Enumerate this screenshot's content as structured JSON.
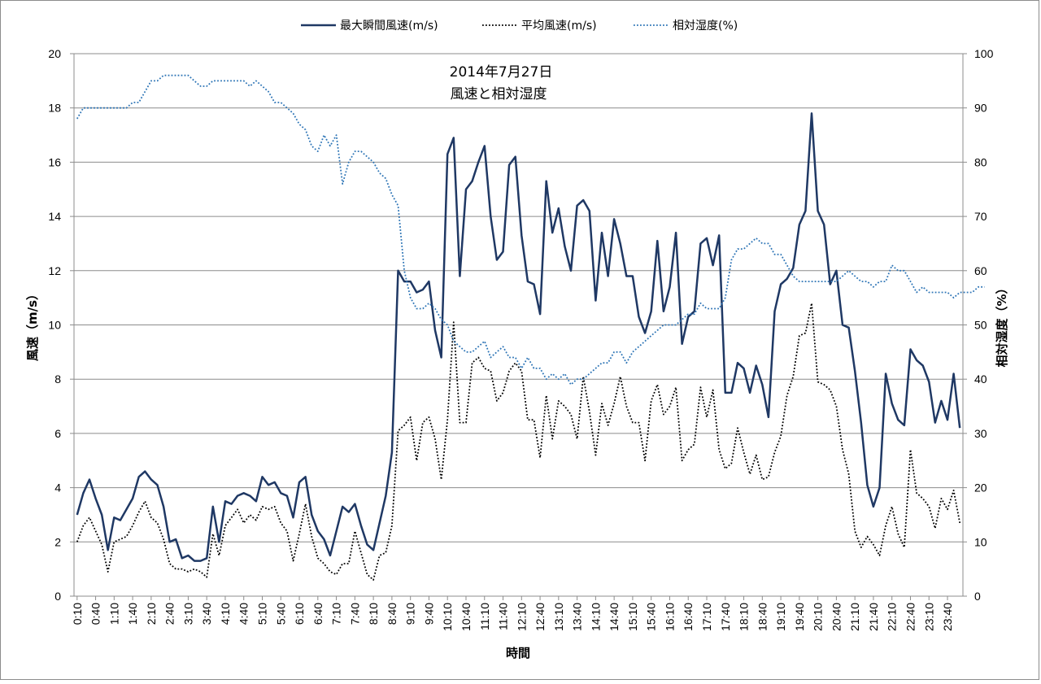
{
  "chart_data": {
    "type": "line",
    "title": "2014年7月27日",
    "subtitle": "風速と相対湿度",
    "xlabel": "時間",
    "ylabel_left": "風速（m/s）",
    "ylabel_right": "相対湿度（%）",
    "ylim_left": [
      0,
      20
    ],
    "ylim_right": [
      0,
      100
    ],
    "yticks_left": [
      "0",
      "2",
      "4",
      "6",
      "8",
      "10",
      "12",
      "14",
      "16",
      "18",
      "20"
    ],
    "yticks_right": [
      "0",
      "10",
      "20",
      "30",
      "40",
      "50",
      "60",
      "70",
      "80",
      "90",
      "100"
    ],
    "grid": true,
    "legend_position": "top",
    "x_tick_labels": [
      "0:10",
      "0:40",
      "1:10",
      "1:40",
      "2:10",
      "2:40",
      "3:10",
      "3:40",
      "4:10",
      "4:40",
      "5:10",
      "5:40",
      "6:10",
      "6:40",
      "7:10",
      "7:40",
      "8:10",
      "8:40",
      "9:10",
      "9:40",
      "10:10",
      "10:40",
      "11:10",
      "11:40",
      "12:10",
      "12:40",
      "13:10",
      "13:40",
      "14:10",
      "14:40",
      "15:10",
      "15:40",
      "16:10",
      "16:40",
      "17:10",
      "17:40",
      "18:10",
      "18:40",
      "19:10",
      "19:40",
      "20:10",
      "20:40",
      "21:10",
      "21:40",
      "22:10",
      "22:40",
      "23:10",
      "23:40"
    ],
    "x_start": "0:10",
    "x_interval_minutes": 10,
    "series": [
      {
        "name": "最大瞬間風速(m/s)",
        "axis": "left",
        "color": "#1f3864",
        "style": "solid",
        "values": [
          3.0,
          3.8,
          4.3,
          3.6,
          3.0,
          1.7,
          2.9,
          2.8,
          3.2,
          3.6,
          4.4,
          4.6,
          4.3,
          4.1,
          3.3,
          2.0,
          2.1,
          1.4,
          1.5,
          1.3,
          1.3,
          1.4,
          3.3,
          2.0,
          3.5,
          3.4,
          3.7,
          3.8,
          3.7,
          3.5,
          4.4,
          4.1,
          4.2,
          3.8,
          3.7,
          2.9,
          4.2,
          4.4,
          3.0,
          2.4,
          2.1,
          1.5,
          2.4,
          3.3,
          3.1,
          3.4,
          2.6,
          1.9,
          1.7,
          2.7,
          3.7,
          5.3,
          12.0,
          11.6,
          11.6,
          11.2,
          11.3,
          11.6,
          9.8,
          8.8,
          16.3,
          16.9,
          11.8,
          15.0,
          15.3,
          16.0,
          16.6,
          14.0,
          12.4,
          12.7,
          15.9,
          16.2,
          13.3,
          11.6,
          11.5,
          10.4,
          15.3,
          13.4,
          14.3,
          12.9,
          12.0,
          14.4,
          14.6,
          14.2,
          10.9,
          13.4,
          11.8,
          13.9,
          13.0,
          11.8,
          11.8,
          10.3,
          9.7,
          10.5,
          13.1,
          10.5,
          11.4,
          13.4,
          9.3,
          10.3,
          10.5,
          13.0,
          13.2,
          12.2,
          13.3,
          7.5,
          7.5,
          8.6,
          8.4,
          7.5,
          8.5,
          7.8,
          6.6,
          10.5,
          11.5,
          11.7,
          12.1,
          13.7,
          14.2,
          17.8,
          14.2,
          13.7,
          11.5,
          12.0,
          10.0,
          9.9,
          8.3,
          6.4,
          4.1,
          3.3,
          4.0,
          8.2,
          7.1,
          6.5,
          6.3,
          9.1,
          8.7,
          8.5,
          7.9,
          6.4,
          7.2,
          6.5,
          8.2,
          6.2
        ]
      },
      {
        "name": "平均風速(m/s)",
        "axis": "left",
        "color": "#000000",
        "style": "dotted",
        "values": [
          2.0,
          2.6,
          2.9,
          2.4,
          1.9,
          0.9,
          2.0,
          2.1,
          2.2,
          2.6,
          3.1,
          3.5,
          2.9,
          2.7,
          2.1,
          1.2,
          1.0,
          1.0,
          0.9,
          1.0,
          0.9,
          0.7,
          2.3,
          1.5,
          2.6,
          2.9,
          3.2,
          2.7,
          3.0,
          2.8,
          3.3,
          3.2,
          3.3,
          2.7,
          2.4,
          1.3,
          2.3,
          3.4,
          2.2,
          1.4,
          1.2,
          0.9,
          0.8,
          1.2,
          1.2,
          2.4,
          1.6,
          0.8,
          0.6,
          1.5,
          1.6,
          2.6,
          6.1,
          6.3,
          6.6,
          5.0,
          6.4,
          6.6,
          5.8,
          4.3,
          6.5,
          10.1,
          6.4,
          6.4,
          8.6,
          8.8,
          8.4,
          8.3,
          7.2,
          7.5,
          8.3,
          8.6,
          8.3,
          6.5,
          6.5,
          5.1,
          7.4,
          5.8,
          7.2,
          7.0,
          6.7,
          5.8,
          8.1,
          6.8,
          5.2,
          7.1,
          6.3,
          7.1,
          8.1,
          7.0,
          6.4,
          6.4,
          5.0,
          7.2,
          7.8,
          6.7,
          7.0,
          7.7,
          5.0,
          5.4,
          5.6,
          7.7,
          6.6,
          7.6,
          5.4,
          4.7,
          4.9,
          6.2,
          5.3,
          4.5,
          5.2,
          4.3,
          4.4,
          5.3,
          5.9,
          7.4,
          8.1,
          9.6,
          9.7,
          10.8,
          7.9,
          7.8,
          7.6,
          7.0,
          5.4,
          4.5,
          2.4,
          1.8,
          2.2,
          1.9,
          1.5,
          2.6,
          3.3,
          2.3,
          1.8,
          5.4,
          3.8,
          3.6,
          3.3,
          2.5,
          3.6,
          3.2,
          3.9,
          2.7
        ]
      },
      {
        "name": "相対湿度(%)",
        "axis": "right",
        "color": "#2e75b6",
        "style": "dotted",
        "values": [
          88,
          90,
          90,
          90,
          90,
          90,
          90,
          90,
          90,
          91,
          91,
          93,
          95,
          95,
          96,
          96,
          96,
          96,
          96,
          95,
          94,
          94,
          95,
          95,
          95,
          95,
          95,
          95,
          94,
          95,
          94,
          93,
          91,
          91,
          90,
          89,
          87,
          86,
          83,
          82,
          85,
          83,
          85,
          76,
          80,
          82,
          82,
          81,
          80,
          78,
          77,
          74,
          72,
          60,
          55,
          53,
          53,
          54,
          53,
          51,
          50,
          47,
          46,
          45,
          45,
          46,
          47,
          44,
          45,
          46,
          44,
          44,
          42,
          44,
          42,
          42,
          40,
          41,
          40,
          41,
          39,
          40,
          40,
          41,
          42,
          43,
          43,
          45,
          45,
          43,
          45,
          46,
          47,
          48,
          49,
          50,
          50,
          50,
          51,
          52,
          52,
          54,
          53,
          53,
          53,
          55,
          62,
          64,
          64,
          65,
          66,
          65,
          65,
          63,
          63,
          61,
          59,
          58,
          58,
          58,
          58,
          58,
          58,
          58,
          59,
          60,
          59,
          58,
          58,
          57,
          58,
          58,
          61,
          60,
          60,
          58,
          56,
          57,
          56,
          56,
          56,
          56,
          55,
          56,
          56,
          56,
          57,
          57
        ]
      }
    ]
  }
}
